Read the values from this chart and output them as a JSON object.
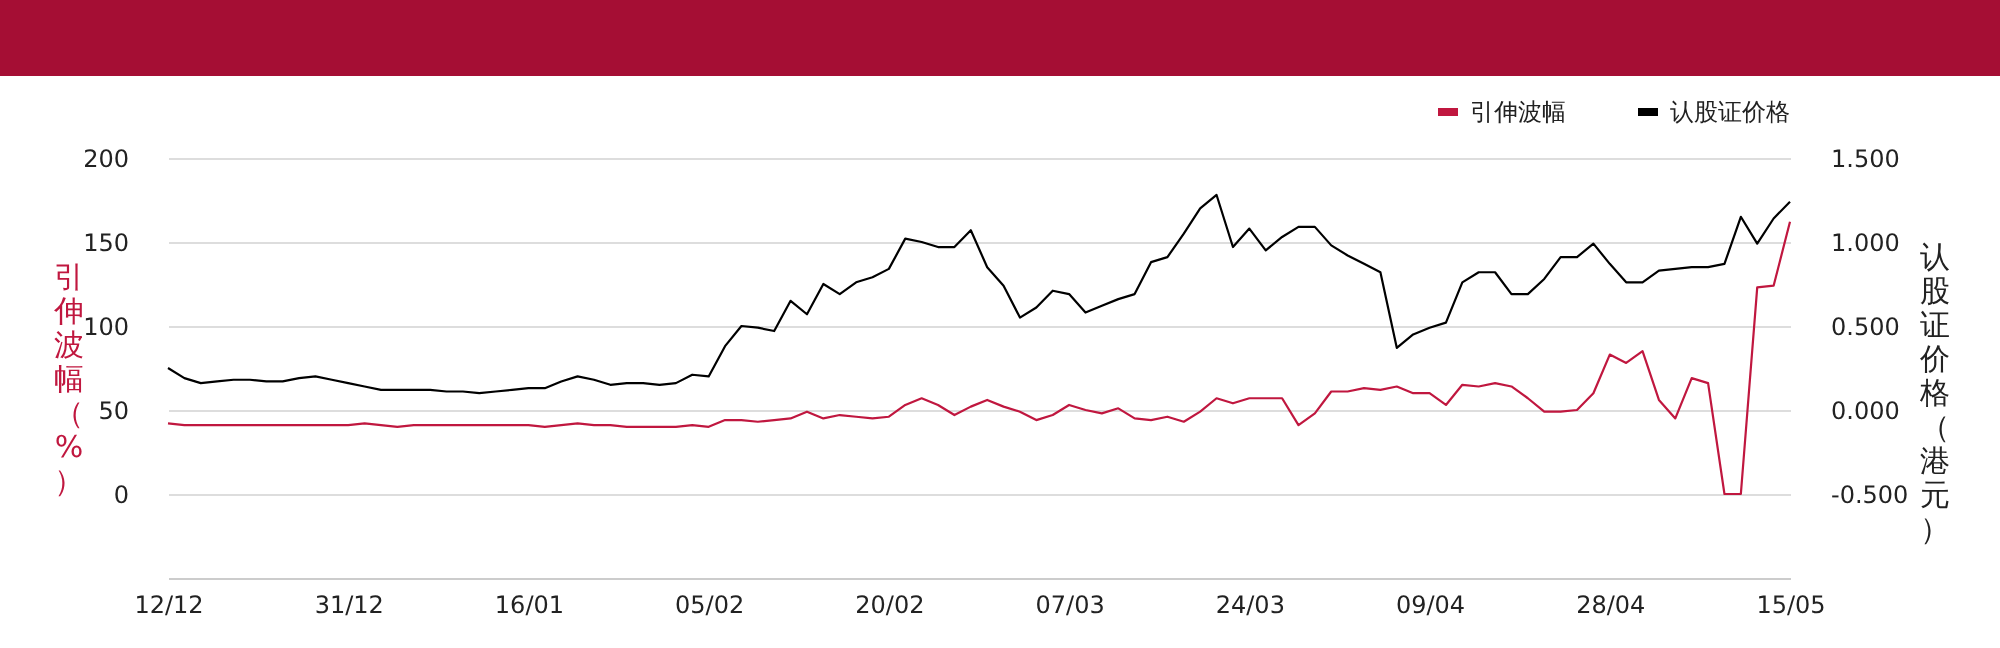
{
  "chart_data": {
    "type": "line",
    "ylabel": "引伸波幅（%）",
    "y2label": "认股证价格（港元）",
    "categories": [
      "12/12",
      null,
      null,
      null,
      null,
      null,
      null,
      null,
      null,
      null,
      null,
      "31/12",
      null,
      null,
      null,
      null,
      null,
      null,
      null,
      null,
      null,
      null,
      "16/01",
      null,
      null,
      null,
      null,
      null,
      null,
      null,
      null,
      null,
      null,
      "05/02",
      null,
      null,
      null,
      null,
      null,
      null,
      null,
      null,
      null,
      null,
      "20/02",
      null,
      null,
      null,
      null,
      null,
      null,
      null,
      null,
      null,
      null,
      "07/03",
      null,
      null,
      null,
      null,
      null,
      null,
      null,
      null,
      null,
      null,
      "24/03",
      null,
      null,
      null,
      null,
      null,
      null,
      null,
      null,
      null,
      null,
      "09/04",
      null,
      null,
      null,
      null,
      null,
      null,
      null,
      null,
      null,
      null,
      "28/04",
      null,
      null,
      null,
      null,
      null,
      null,
      null,
      null,
      null,
      null,
      "15/05"
    ],
    "series": [
      {
        "name": "引伸波幅",
        "color": "#c0173f",
        "values": [
          42,
          41,
          41,
          41,
          41,
          41,
          41,
          41,
          41,
          41,
          41,
          41,
          42,
          41,
          40,
          41,
          41,
          41,
          41,
          41,
          41,
          41,
          41,
          40,
          41,
          42,
          41,
          41,
          40,
          40,
          40,
          40,
          41,
          40,
          44,
          44,
          43,
          44,
          45,
          49,
          45,
          47,
          46,
          45,
          46,
          53,
          57,
          53,
          47,
          52,
          56,
          52,
          49,
          44,
          47,
          53,
          50,
          48,
          51,
          45,
          44,
          46,
          43,
          49,
          57,
          54,
          57,
          57,
          57,
          41,
          48,
          61,
          61,
          63,
          62,
          64,
          60,
          60,
          53,
          65,
          64,
          66,
          64,
          57,
          49,
          49,
          50,
          60,
          83,
          78,
          85,
          56,
          45,
          69,
          66,
          0,
          0,
          123,
          124,
          162
        ]
      },
      {
        "name": "认股证价格",
        "color": "#000000",
        "axis": "y2",
        "values": [
          0.25,
          0.19,
          0.16,
          0.17,
          0.18,
          0.18,
          0.17,
          0.17,
          0.19,
          0.2,
          0.18,
          0.16,
          0.14,
          0.12,
          0.12,
          0.12,
          0.12,
          0.11,
          0.11,
          0.1,
          0.11,
          0.12,
          0.13,
          0.13,
          0.17,
          0.2,
          0.18,
          0.15,
          0.16,
          0.16,
          0.15,
          0.16,
          0.21,
          0.2,
          0.38,
          0.5,
          0.49,
          0.47,
          0.65,
          0.57,
          0.75,
          0.69,
          0.76,
          0.79,
          0.84,
          1.02,
          1.0,
          0.97,
          0.97,
          1.07,
          0.85,
          0.74,
          0.55,
          0.61,
          0.71,
          0.69,
          0.58,
          0.62,
          0.66,
          0.69,
          0.88,
          0.91,
          1.05,
          1.2,
          1.28,
          0.97,
          1.08,
          0.95,
          1.03,
          1.09,
          1.09,
          0.98,
          0.92,
          0.87,
          0.82,
          0.37,
          0.45,
          0.49,
          0.52,
          0.76,
          0.82,
          0.82,
          0.69,
          0.69,
          0.78,
          0.91,
          0.91,
          0.99,
          0.87,
          0.76,
          0.76,
          0.83,
          0.84,
          0.85,
          0.85,
          0.87,
          1.15,
          0.99,
          1.14,
          1.24
        ]
      }
    ],
    "ylim": [
      -50,
      200
    ],
    "yticks": [
      0,
      50,
      100,
      150,
      200
    ],
    "y2lim": [
      -1,
      1.5
    ],
    "y2ticks": [
      {
        "value": -0.5,
        "label": "-0.500"
      },
      {
        "value": 0,
        "label": "0.000"
      },
      {
        "value": 0.5,
        "label": "0.500"
      },
      {
        "value": 1,
        "label": "1.000"
      },
      {
        "value": 1.5,
        "label": "1.500"
      }
    ],
    "grid": "y",
    "legend": "top right"
  }
}
